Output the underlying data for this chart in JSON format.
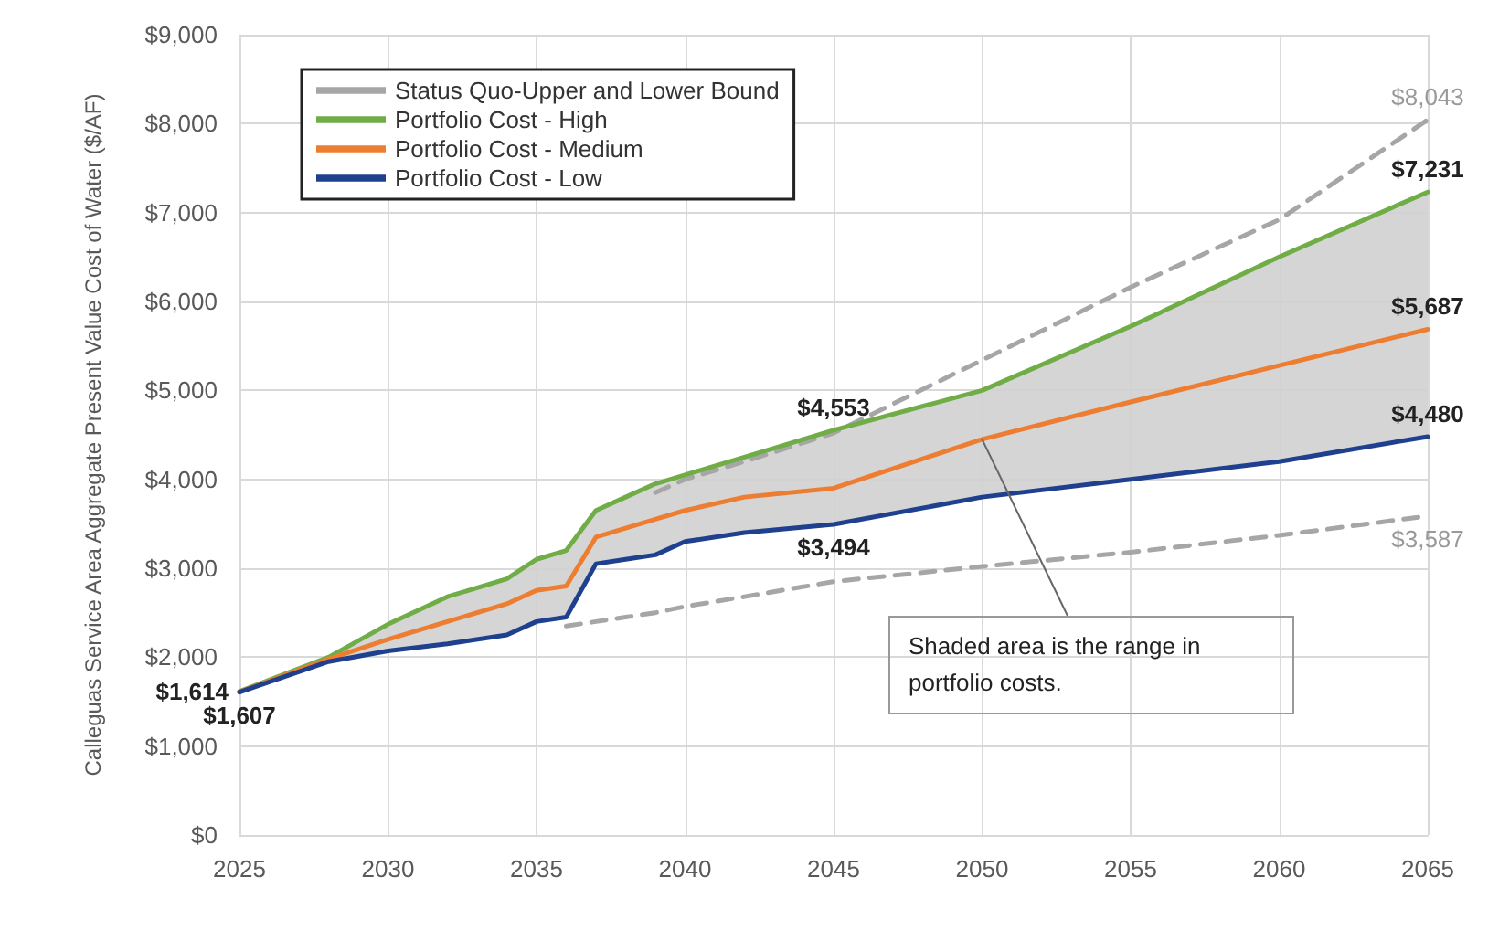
{
  "chart_data": {
    "type": "line",
    "ylabel": "Calleguas Service Area Aggregate Present Value Cost of Water ($/AF)",
    "x": [
      2025,
      2028,
      2030,
      2032,
      2034,
      2035,
      2036,
      2037,
      2038,
      2039,
      2040,
      2042,
      2045,
      2050,
      2055,
      2060,
      2065
    ],
    "series": [
      {
        "name": "Status Quo-Upper and Lower Bound",
        "color": "#a6a6a6",
        "line_style": "dashed",
        "values": [
          null,
          null,
          null,
          null,
          null,
          null,
          null,
          null,
          null,
          3850,
          4000,
          4200,
          4520,
          5340,
          6160,
          6920,
          8043
        ],
        "value_labels": [
          null,
          null,
          null,
          null,
          null,
          null,
          null,
          null,
          null,
          null,
          null,
          null,
          null,
          null,
          null,
          null,
          "$8,043"
        ]
      },
      {
        "color": "#a6a6a6",
        "line_style": "dashed",
        "values": [
          null,
          null,
          null,
          null,
          null,
          null,
          2350,
          2400,
          2450,
          2500,
          2570,
          2680,
          2850,
          3020,
          3180,
          3370,
          3587
        ],
        "value_labels": [
          null,
          null,
          null,
          null,
          null,
          null,
          null,
          null,
          null,
          null,
          null,
          null,
          null,
          null,
          null,
          null,
          "$3,587"
        ]
      },
      {
        "name": "Portfolio Cost - High",
        "color": "#70ad47",
        "values": [
          1614,
          2000,
          2370,
          2680,
          2880,
          3100,
          3200,
          3650,
          3800,
          3950,
          4050,
          4250,
          4553,
          5000,
          5720,
          6500,
          7231
        ],
        "value_labels": [
          "$1,614",
          null,
          null,
          null,
          null,
          null,
          null,
          null,
          null,
          null,
          null,
          null,
          "$4,553",
          null,
          null,
          null,
          "$7,231"
        ]
      },
      {
        "name": "Portfolio Cost - Medium",
        "color": "#ed7d31",
        "values": [
          1610,
          1980,
          2200,
          2400,
          2600,
          2750,
          2800,
          3350,
          3450,
          3550,
          3650,
          3800,
          3900,
          4450,
          4870,
          5280,
          5687
        ],
        "lower": [
          1607,
          1950,
          2070,
          2150,
          2250,
          2400,
          2450,
          3050,
          3100,
          3150,
          3300,
          3400,
          3494,
          3800,
          4000,
          4200,
          4480
        ],
        "upper": [
          1614,
          2000,
          2370,
          2680,
          2880,
          3100,
          3200,
          3650,
          3800,
          3950,
          4050,
          4250,
          4553,
          5000,
          5720,
          6500,
          7231
        ],
        "value_labels": [
          null,
          null,
          null,
          null,
          null,
          null,
          null,
          null,
          null,
          null,
          null,
          null,
          null,
          null,
          null,
          null,
          "$5,687"
        ]
      },
      {
        "name": "Portfolio Cost - Low",
        "color": "#1f3f8f",
        "values": [
          1607,
          1950,
          2070,
          2150,
          2250,
          2400,
          2450,
          3050,
          3100,
          3150,
          3300,
          3400,
          3494,
          3800,
          4000,
          4200,
          4480
        ],
        "value_labels": [
          "$1,607",
          null,
          null,
          null,
          null,
          null,
          null,
          null,
          null,
          null,
          null,
          null,
          "$3,494",
          null,
          null,
          null,
          "$4,480"
        ]
      }
    ],
    "annotations": [
      {
        "text": "Shaded area is the range in portfolio costs.",
        "x": 2050,
        "y": 4450
      }
    ],
    "xlim": [
      2025,
      2065
    ],
    "xticks": [
      2025,
      2030,
      2035,
      2040,
      2045,
      2050,
      2055,
      2060,
      2065
    ],
    "ylim": [
      0,
      9000
    ],
    "yticks": [
      {
        "value": 0,
        "label": "$0"
      },
      {
        "value": 1000,
        "label": "$1,000"
      },
      {
        "value": 2000,
        "label": "$2,000"
      },
      {
        "value": 3000,
        "label": "$3,000"
      },
      {
        "value": 4000,
        "label": "$4,000"
      },
      {
        "value": 5000,
        "label": "$5,000"
      },
      {
        "value": 6000,
        "label": "$6,000"
      },
      {
        "value": 7000,
        "label": "$7,000"
      },
      {
        "value": 8000,
        "label": "$8,000"
      },
      {
        "value": 9000,
        "label": "$9,000"
      }
    ],
    "grid": true,
    "legend": "top left",
    "marker": "none"
  }
}
